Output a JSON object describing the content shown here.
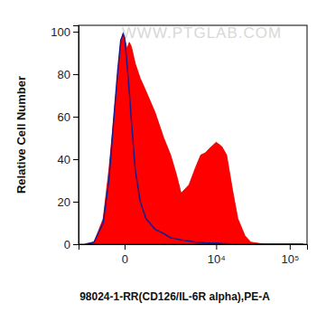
{
  "chart_data": {
    "type": "histogram",
    "watermark": "WWW.PTGLAB.COM",
    "x_label": "98024-1-RR(CD126/IL-6R alpha),PE-A",
    "y_label": "Relative Cell Number",
    "x": [
      -1500,
      -1000,
      -600,
      -400,
      -250,
      -150,
      -80,
      -30,
      0,
      50,
      100,
      150,
      250,
      400,
      600,
      1000,
      1500,
      2000,
      2500,
      3000,
      4000,
      5000,
      6000,
      7000,
      8000,
      10000,
      12000,
      14000,
      17000,
      20000,
      25000,
      30000,
      40000,
      60000,
      100000,
      150000
    ],
    "series": [
      {
        "type": "area",
        "color": "#ff0000",
        "values": [
          0,
          1,
          12,
          35,
          60,
          80,
          95,
          99,
          97,
          92,
          95,
          93,
          85,
          78,
          72,
          62,
          50,
          42,
          33,
          24,
          28,
          36,
          42,
          43,
          45,
          48,
          46,
          42,
          25,
          12,
          4,
          1,
          0.3,
          0,
          0,
          0
        ]
      },
      {
        "type": "line",
        "color": "#1a1a8c",
        "values": [
          0,
          1,
          10,
          30,
          60,
          82,
          96,
          99,
          97,
          85,
          72,
          58,
          35,
          20,
          12,
          7,
          5,
          3,
          2.5,
          2,
          1.5,
          1,
          0.8,
          0.6,
          0.5,
          0.5,
          0.3,
          0.2,
          0.1,
          0,
          0,
          0,
          0,
          0,
          0,
          0
        ]
      }
    ],
    "xlim": [
      -2000,
      170000
    ],
    "xticks": [
      0,
      {
        "value": 10000,
        "label": "10⁴"
      },
      {
        "value": 100000,
        "label": "10⁵"
      }
    ],
    "ylim": [
      0,
      103
    ],
    "yticks": [
      0,
      20,
      40,
      60,
      80,
      100
    ],
    "grid": false
  }
}
